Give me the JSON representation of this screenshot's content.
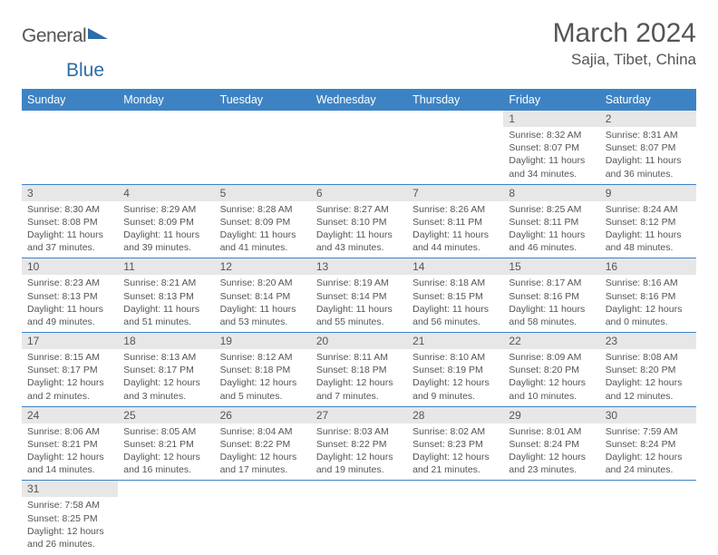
{
  "brand": {
    "part1": "General",
    "part2": "Blue"
  },
  "title": "March 2024",
  "location": "Sajia, Tibet, China",
  "colors": {
    "header_bg": "#3d83c4",
    "header_text": "#ffffff",
    "daynum_bg": "#e7e7e7",
    "border": "#3d83c4",
    "text": "#555555",
    "brand_blue": "#2d6ca8"
  },
  "weekdays": [
    "Sunday",
    "Monday",
    "Tuesday",
    "Wednesday",
    "Thursday",
    "Friday",
    "Saturday"
  ],
  "weeks": [
    [
      null,
      null,
      null,
      null,
      null,
      {
        "n": "1",
        "sr": "Sunrise: 8:32 AM",
        "ss": "Sunset: 8:07 PM",
        "d1": "Daylight: 11 hours",
        "d2": "and 34 minutes."
      },
      {
        "n": "2",
        "sr": "Sunrise: 8:31 AM",
        "ss": "Sunset: 8:07 PM",
        "d1": "Daylight: 11 hours",
        "d2": "and 36 minutes."
      }
    ],
    [
      {
        "n": "3",
        "sr": "Sunrise: 8:30 AM",
        "ss": "Sunset: 8:08 PM",
        "d1": "Daylight: 11 hours",
        "d2": "and 37 minutes."
      },
      {
        "n": "4",
        "sr": "Sunrise: 8:29 AM",
        "ss": "Sunset: 8:09 PM",
        "d1": "Daylight: 11 hours",
        "d2": "and 39 minutes."
      },
      {
        "n": "5",
        "sr": "Sunrise: 8:28 AM",
        "ss": "Sunset: 8:09 PM",
        "d1": "Daylight: 11 hours",
        "d2": "and 41 minutes."
      },
      {
        "n": "6",
        "sr": "Sunrise: 8:27 AM",
        "ss": "Sunset: 8:10 PM",
        "d1": "Daylight: 11 hours",
        "d2": "and 43 minutes."
      },
      {
        "n": "7",
        "sr": "Sunrise: 8:26 AM",
        "ss": "Sunset: 8:11 PM",
        "d1": "Daylight: 11 hours",
        "d2": "and 44 minutes."
      },
      {
        "n": "8",
        "sr": "Sunrise: 8:25 AM",
        "ss": "Sunset: 8:11 PM",
        "d1": "Daylight: 11 hours",
        "d2": "and 46 minutes."
      },
      {
        "n": "9",
        "sr": "Sunrise: 8:24 AM",
        "ss": "Sunset: 8:12 PM",
        "d1": "Daylight: 11 hours",
        "d2": "and 48 minutes."
      }
    ],
    [
      {
        "n": "10",
        "sr": "Sunrise: 8:23 AM",
        "ss": "Sunset: 8:13 PM",
        "d1": "Daylight: 11 hours",
        "d2": "and 49 minutes."
      },
      {
        "n": "11",
        "sr": "Sunrise: 8:21 AM",
        "ss": "Sunset: 8:13 PM",
        "d1": "Daylight: 11 hours",
        "d2": "and 51 minutes."
      },
      {
        "n": "12",
        "sr": "Sunrise: 8:20 AM",
        "ss": "Sunset: 8:14 PM",
        "d1": "Daylight: 11 hours",
        "d2": "and 53 minutes."
      },
      {
        "n": "13",
        "sr": "Sunrise: 8:19 AM",
        "ss": "Sunset: 8:14 PM",
        "d1": "Daylight: 11 hours",
        "d2": "and 55 minutes."
      },
      {
        "n": "14",
        "sr": "Sunrise: 8:18 AM",
        "ss": "Sunset: 8:15 PM",
        "d1": "Daylight: 11 hours",
        "d2": "and 56 minutes."
      },
      {
        "n": "15",
        "sr": "Sunrise: 8:17 AM",
        "ss": "Sunset: 8:16 PM",
        "d1": "Daylight: 11 hours",
        "d2": "and 58 minutes."
      },
      {
        "n": "16",
        "sr": "Sunrise: 8:16 AM",
        "ss": "Sunset: 8:16 PM",
        "d1": "Daylight: 12 hours",
        "d2": "and 0 minutes."
      }
    ],
    [
      {
        "n": "17",
        "sr": "Sunrise: 8:15 AM",
        "ss": "Sunset: 8:17 PM",
        "d1": "Daylight: 12 hours",
        "d2": "and 2 minutes."
      },
      {
        "n": "18",
        "sr": "Sunrise: 8:13 AM",
        "ss": "Sunset: 8:17 PM",
        "d1": "Daylight: 12 hours",
        "d2": "and 3 minutes."
      },
      {
        "n": "19",
        "sr": "Sunrise: 8:12 AM",
        "ss": "Sunset: 8:18 PM",
        "d1": "Daylight: 12 hours",
        "d2": "and 5 minutes."
      },
      {
        "n": "20",
        "sr": "Sunrise: 8:11 AM",
        "ss": "Sunset: 8:18 PM",
        "d1": "Daylight: 12 hours",
        "d2": "and 7 minutes."
      },
      {
        "n": "21",
        "sr": "Sunrise: 8:10 AM",
        "ss": "Sunset: 8:19 PM",
        "d1": "Daylight: 12 hours",
        "d2": "and 9 minutes."
      },
      {
        "n": "22",
        "sr": "Sunrise: 8:09 AM",
        "ss": "Sunset: 8:20 PM",
        "d1": "Daylight: 12 hours",
        "d2": "and 10 minutes."
      },
      {
        "n": "23",
        "sr": "Sunrise: 8:08 AM",
        "ss": "Sunset: 8:20 PM",
        "d1": "Daylight: 12 hours",
        "d2": "and 12 minutes."
      }
    ],
    [
      {
        "n": "24",
        "sr": "Sunrise: 8:06 AM",
        "ss": "Sunset: 8:21 PM",
        "d1": "Daylight: 12 hours",
        "d2": "and 14 minutes."
      },
      {
        "n": "25",
        "sr": "Sunrise: 8:05 AM",
        "ss": "Sunset: 8:21 PM",
        "d1": "Daylight: 12 hours",
        "d2": "and 16 minutes."
      },
      {
        "n": "26",
        "sr": "Sunrise: 8:04 AM",
        "ss": "Sunset: 8:22 PM",
        "d1": "Daylight: 12 hours",
        "d2": "and 17 minutes."
      },
      {
        "n": "27",
        "sr": "Sunrise: 8:03 AM",
        "ss": "Sunset: 8:22 PM",
        "d1": "Daylight: 12 hours",
        "d2": "and 19 minutes."
      },
      {
        "n": "28",
        "sr": "Sunrise: 8:02 AM",
        "ss": "Sunset: 8:23 PM",
        "d1": "Daylight: 12 hours",
        "d2": "and 21 minutes."
      },
      {
        "n": "29",
        "sr": "Sunrise: 8:01 AM",
        "ss": "Sunset: 8:24 PM",
        "d1": "Daylight: 12 hours",
        "d2": "and 23 minutes."
      },
      {
        "n": "30",
        "sr": "Sunrise: 7:59 AM",
        "ss": "Sunset: 8:24 PM",
        "d1": "Daylight: 12 hours",
        "d2": "and 24 minutes."
      }
    ],
    [
      {
        "n": "31",
        "sr": "Sunrise: 7:58 AM",
        "ss": "Sunset: 8:25 PM",
        "d1": "Daylight: 12 hours",
        "d2": "and 26 minutes."
      },
      null,
      null,
      null,
      null,
      null,
      null
    ]
  ]
}
